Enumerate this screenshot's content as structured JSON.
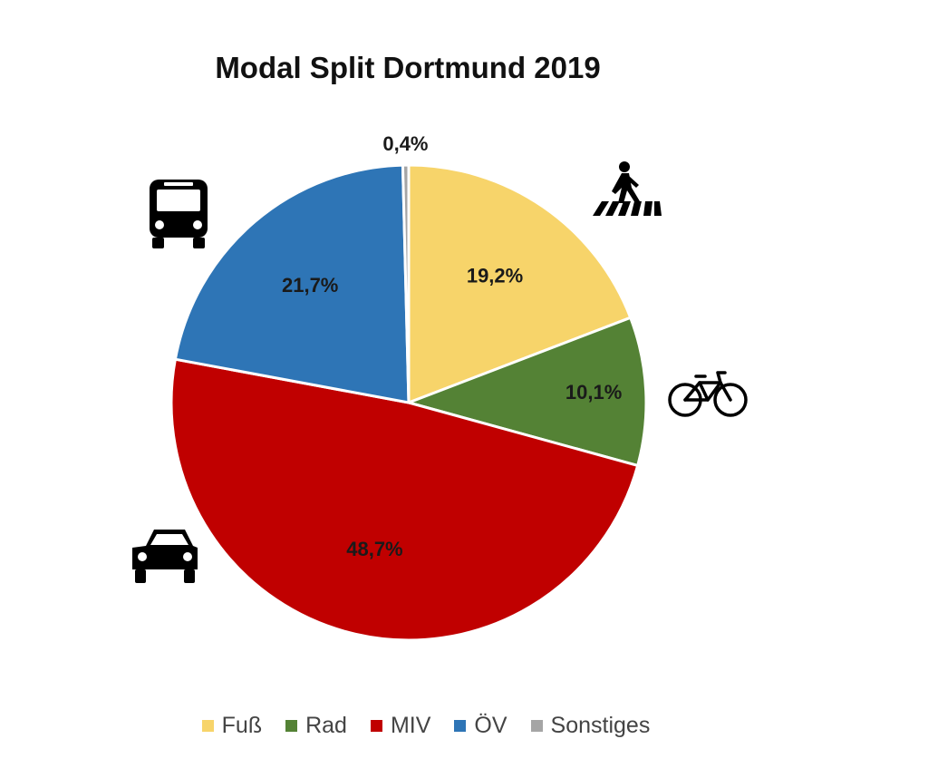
{
  "chart_data": {
    "type": "pie",
    "title": "Modal Split Dortmund 2019",
    "slices": [
      {
        "name": "Fuß",
        "value": 19.2,
        "label": "19,2%",
        "color": "#F7D46A",
        "icon": "pedestrian-crossing-icon"
      },
      {
        "name": "Rad",
        "value": 10.1,
        "label": "10,1%",
        "color": "#548235",
        "icon": "bicycle-icon"
      },
      {
        "name": "MIV",
        "value": 48.7,
        "label": "48,7%",
        "color": "#C00000",
        "icon": "car-icon"
      },
      {
        "name": "ÖV",
        "value": 21.7,
        "label": "21,7%",
        "color": "#2E75B6",
        "icon": "bus-icon"
      },
      {
        "name": "Sonstiges",
        "value": 0.4,
        "label": "0,4%",
        "color": "#A5A5A5"
      }
    ],
    "legend_position": "bottom"
  }
}
